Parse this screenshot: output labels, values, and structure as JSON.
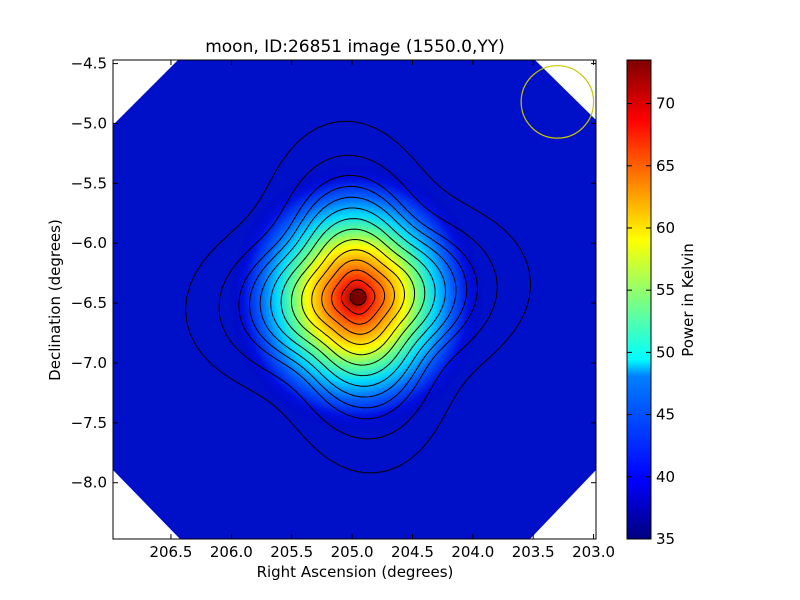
{
  "chart_data": {
    "type": "heatmap",
    "title": "moon, ID:26851 image (1550.0,YY)",
    "xlabel": "Right Ascension (degrees)",
    "ylabel": "Declination (degrees)",
    "xlim": [
      206.98,
      202.98
    ],
    "ylim": [
      -8.47,
      -4.47
    ],
    "x_ticks": [
      206.5,
      206.0,
      205.5,
      205.0,
      204.5,
      204.0,
      203.5,
      203.0
    ],
    "x_tick_labels": [
      "206.5",
      "206.0",
      "205.5",
      "205.0",
      "204.5",
      "204.0",
      "203.5",
      "203.0"
    ],
    "y_ticks": [
      -4.5,
      -5.0,
      -5.5,
      -6.0,
      -6.5,
      -7.0,
      -7.5,
      -8.0
    ],
    "y_tick_labels": [
      "−4.5",
      "−5.0",
      "−5.5",
      "−6.0",
      "−6.5",
      "−7.0",
      "−7.5",
      "−8.0"
    ],
    "peak": {
      "ra": 204.95,
      "dec": -6.45,
      "value": 73.5
    },
    "background_value": 36.5,
    "colorscale": "jet",
    "colorbar": {
      "label": "Power in Kelvin",
      "min": 35,
      "max": 73.5,
      "ticks": [
        35,
        40,
        45,
        50,
        55,
        60,
        65,
        70
      ],
      "tick_labels": [
        "35",
        "40",
        "45",
        "50",
        "55",
        "60",
        "65",
        "70"
      ]
    },
    "contours": {
      "color": "#000000",
      "levels": 13
    },
    "beam_circle": {
      "ra": 203.3,
      "dec": -4.82,
      "radius_deg": 0.3,
      "color": "#c8c800"
    },
    "grid": false
  }
}
